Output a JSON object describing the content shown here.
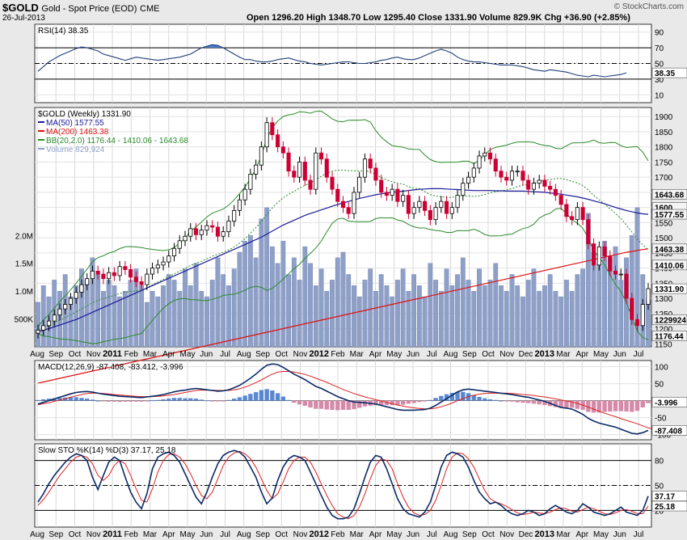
{
  "header": {
    "symbol": "$GOLD",
    "description": "Gold - Spot Price (EOD)",
    "exchange": "CME",
    "date": "26-Jul-2013",
    "ohlc_text": "Open 1296.20  High 1348.70  Low 1295.40  Close 1331.90  Volume 829.9K  Chg +36.90 (+2.85%)",
    "copyright": "© StockCharts.com"
  },
  "colors": {
    "up": "#000000",
    "down": "#cc0033",
    "ma50": "#1a1a99",
    "ma200": "#dd1111",
    "bb": "#2a8a2a",
    "volume": "#8fa0c8",
    "rsi": "#1f3f7a",
    "macd": "#0b2a66",
    "signal": "#dd2222",
    "hist_up": "#5a88d0",
    "hist_down": "#d48aa8",
    "stoK": "#0b2a66",
    "stoD": "#dd2222"
  },
  "chart_data": [
    {
      "type": "line",
      "panel": "rsi",
      "title": "RSI(14) 38.35",
      "yticks": [
        10,
        30,
        50,
        70,
        90
      ],
      "ylim": [
        0,
        100
      ],
      "current_label": "38.35",
      "guides": [
        30,
        50,
        70
      ],
      "series": [
        {
          "name": "RSI(14)",
          "values": [
            40,
            46,
            52,
            56,
            60,
            63,
            66,
            69,
            71,
            70,
            68,
            66,
            62,
            60,
            58,
            56,
            54,
            56,
            58,
            57,
            56,
            55,
            54,
            55,
            56,
            57,
            58,
            60,
            62,
            66,
            70,
            72,
            74,
            73,
            70,
            66,
            62,
            58,
            55,
            55,
            53,
            52,
            52,
            53,
            55,
            56,
            57,
            55,
            53,
            52,
            50,
            49,
            48,
            49,
            50,
            51,
            52,
            52,
            51,
            50,
            50,
            51,
            52,
            54,
            55,
            57,
            58,
            56,
            55,
            55,
            57,
            60,
            63,
            66,
            68,
            66,
            63,
            58,
            55,
            53,
            52,
            52,
            51,
            50,
            49,
            48,
            48,
            48,
            47,
            46,
            44,
            42,
            41,
            40,
            42,
            41,
            40,
            39,
            37,
            35,
            34,
            33,
            35,
            34,
            33,
            34,
            35,
            36,
            38
          ]
        }
      ]
    },
    {
      "type": "candlestick",
      "panel": "price",
      "title": "$GOLD (Weekly) 1331.90",
      "legend": [
        "MA(50) 1577.55",
        "MA(200) 1463.38",
        "BB(20,2.0) 1176.44 - 1410.06 - 1643.68",
        "Volume 829,924"
      ],
      "yticks": [
        1150,
        1200,
        1250,
        1300,
        1350,
        1400,
        1450,
        1500,
        1550,
        1600,
        1650,
        1700,
        1750,
        1800,
        1850,
        1900
      ],
      "ylim": [
        1140,
        1930
      ],
      "volume_ticks": [
        "500K",
        "1.0M",
        "1.5M",
        "2.0M"
      ],
      "volume_max": 4.3,
      "price_labels": [
        "1643.68",
        "1600",
        "1577.55",
        "1463.38",
        "1410.06",
        "1331.90",
        "1229924",
        "1176.44"
      ],
      "x_tick_labels": [
        "Aug",
        "Sep",
        "Oct",
        "Nov",
        "2011",
        "Feb",
        "Mar",
        "Apr",
        "May",
        "Jun",
        "Jul",
        "Aug",
        "Sep",
        "Oct",
        "Nov",
        "2012",
        "Feb",
        "Mar",
        "Apr",
        "May",
        "Jun",
        "Jul",
        "Aug",
        "Sep",
        "Oct",
        "Nov",
        "Dec",
        "2013",
        "Mar",
        "Apr",
        "May",
        "Jun",
        "Jul"
      ],
      "close": [
        1195,
        1210,
        1225,
        1245,
        1265,
        1280,
        1300,
        1320,
        1345,
        1365,
        1390,
        1380,
        1365,
        1385,
        1375,
        1405,
        1395,
        1370,
        1355,
        1345,
        1380,
        1400,
        1410,
        1420,
        1440,
        1465,
        1490,
        1505,
        1530,
        1510,
        1525,
        1540,
        1535,
        1505,
        1520,
        1555,
        1590,
        1625,
        1660,
        1710,
        1740,
        1800,
        1880,
        1840,
        1800,
        1780,
        1720,
        1700,
        1750,
        1690,
        1660,
        1780,
        1760,
        1700,
        1660,
        1620,
        1600,
        1580,
        1650,
        1700,
        1760,
        1730,
        1690,
        1650,
        1640,
        1660,
        1620,
        1640,
        1580,
        1600,
        1620,
        1590,
        1560,
        1600,
        1620,
        1580,
        1600,
        1640,
        1680,
        1700,
        1730,
        1770,
        1780,
        1760,
        1720,
        1700,
        1690,
        1720,
        1720,
        1690,
        1660,
        1680,
        1690,
        1670,
        1660,
        1640,
        1610,
        1570,
        1560,
        1600,
        1560,
        1480,
        1410,
        1470,
        1440,
        1390,
        1380,
        1380,
        1300,
        1230,
        1210,
        1280,
        1331.9
      ],
      "ma50": [
        1190,
        1195,
        1200,
        1206,
        1212,
        1218,
        1224,
        1230,
        1238,
        1246,
        1254,
        1262,
        1270,
        1278,
        1286,
        1294,
        1302,
        1310,
        1318,
        1326,
        1334,
        1342,
        1350,
        1358,
        1366,
        1374,
        1382,
        1390,
        1398,
        1406,
        1414,
        1422,
        1430,
        1438,
        1446,
        1454,
        1462,
        1470,
        1478,
        1486,
        1494,
        1502,
        1512,
        1522,
        1532,
        1542,
        1550,
        1558,
        1566,
        1574,
        1580,
        1586,
        1592,
        1598,
        1604,
        1610,
        1615,
        1620,
        1625,
        1630,
        1634,
        1638,
        1642,
        1645,
        1648,
        1650,
        1652,
        1654,
        1656,
        1658,
        1660,
        1661,
        1662,
        1662,
        1662,
        1661,
        1660,
        1659,
        1658,
        1657,
        1656,
        1656,
        1656,
        1656,
        1655,
        1655,
        1654,
        1654,
        1654,
        1654,
        1653,
        1652,
        1651,
        1650,
        1648,
        1646,
        1644,
        1641,
        1638,
        1635,
        1631,
        1627,
        1622,
        1617,
        1612,
        1606,
        1600,
        1595,
        1590,
        1586,
        1582,
        1579,
        1577.55
      ],
      "ma200": [
        1020,
        1024,
        1028,
        1032,
        1036,
        1040,
        1044,
        1048,
        1052,
        1056,
        1060,
        1064,
        1068,
        1072,
        1076,
        1080,
        1084,
        1088,
        1092,
        1096,
        1100,
        1104,
        1108,
        1112,
        1116,
        1120,
        1124,
        1128,
        1132,
        1136,
        1140,
        1144,
        1148,
        1152,
        1156,
        1160,
        1164,
        1168,
        1172,
        1176,
        1180,
        1184,
        1188,
        1192,
        1196,
        1200,
        1204,
        1208,
        1212,
        1216,
        1220,
        1224,
        1228,
        1232,
        1236,
        1240,
        1244,
        1248,
        1252,
        1256,
        1260,
        1264,
        1268,
        1272,
        1276,
        1280,
        1284,
        1288,
        1292,
        1296,
        1300,
        1304,
        1308,
        1312,
        1316,
        1320,
        1324,
        1328,
        1332,
        1336,
        1340,
        1344,
        1348,
        1352,
        1356,
        1360,
        1364,
        1368,
        1372,
        1376,
        1380,
        1384,
        1388,
        1392,
        1396,
        1400,
        1404,
        1408,
        1412,
        1416,
        1420,
        1424,
        1428,
        1432,
        1436,
        1440,
        1444,
        1448,
        1452,
        1455,
        1458,
        1461,
        1463.38
      ],
      "volume": [
        0.8,
        1.1,
        0.9,
        1.2,
        1.0,
        1.3,
        0.9,
        1.1,
        1.4,
        1.2,
        1.6,
        1.3,
        1.0,
        1.2,
        1.1,
        0.9,
        1.0,
        1.2,
        1.4,
        1.1,
        0.8,
        1.0,
        0.9,
        1.1,
        1.3,
        1.2,
        1.0,
        1.4,
        1.1,
        1.5,
        1.0,
        0.9,
        1.2,
        1.6,
        1.3,
        1.1,
        1.4,
        1.7,
        1.9,
        2.0,
        1.6,
        2.3,
        2.5,
        1.8,
        1.5,
        1.9,
        1.3,
        1.6,
        1.2,
        1.8,
        1.5,
        1.1,
        1.4,
        1.0,
        1.2,
        1.6,
        1.7,
        1.3,
        1.1,
        0.9,
        1.2,
        1.4,
        1.0,
        1.3,
        1.1,
        0.9,
        1.2,
        1.4,
        1.0,
        1.3,
        1.1,
        0.9,
        1.5,
        1.2,
        1.0,
        1.4,
        1.1,
        1.3,
        1.6,
        1.2,
        1.0,
        1.4,
        1.1,
        1.2,
        1.5,
        1.1,
        1.0,
        1.3,
        1.1,
        0.9,
        1.2,
        1.4,
        1.0,
        1.1,
        1.3,
        1.0,
        0.9,
        1.2,
        1.0,
        1.3,
        1.4,
        2.4,
        1.7,
        1.5,
        1.9,
        1.6,
        1.8,
        1.2,
        1.6,
        2.0,
        2.5,
        1.3,
        0.83
      ]
    },
    {
      "type": "line",
      "panel": "macd",
      "title": "MACD(12,26,9) -87.408, -83.412, -3.996",
      "yticks": [
        -100,
        -50,
        0,
        50,
        100
      ],
      "ylim": [
        -115,
        118
      ],
      "current_labels": [
        "-3.996",
        "-87.408"
      ],
      "series": [
        {
          "name": "MACD(12,26,9)",
          "values": [
            -10,
            -5,
            0,
            5,
            10,
            15,
            20,
            24,
            26,
            27,
            25,
            22,
            19,
            17,
            15,
            13,
            12,
            11,
            10,
            9,
            11,
            13,
            15,
            18,
            22,
            26,
            29,
            31,
            34,
            36,
            34,
            32,
            30,
            28,
            29,
            32,
            38,
            45,
            55,
            66,
            78,
            92,
            104,
            108,
            106,
            98,
            88,
            78,
            70,
            62,
            52,
            42,
            36,
            28,
            20,
            12,
            6,
            0,
            -4,
            -5,
            -6,
            -8,
            -10,
            -14,
            -18,
            -22,
            -26,
            -28,
            -28,
            -28,
            -27,
            -26,
            -22,
            -14,
            -4,
            6,
            16,
            26,
            32,
            34,
            32,
            30,
            28,
            26,
            24,
            22,
            20,
            18,
            15,
            12,
            10,
            6,
            2,
            -2,
            -8,
            -14,
            -20,
            -22,
            -25,
            -32,
            -40,
            -52,
            -60,
            -66,
            -70,
            -74,
            -78,
            -84,
            -90,
            -96,
            -98,
            -94,
            -87.408
          ]
        },
        {
          "name": "Signal",
          "values": [
            -12,
            -9,
            -6,
            -2,
            2,
            6,
            10,
            14,
            18,
            21,
            22,
            22,
            21,
            20,
            18,
            17,
            15,
            14,
            13,
            12,
            12,
            12,
            13,
            14,
            16,
            18,
            21,
            24,
            27,
            30,
            31,
            31,
            31,
            30,
            30,
            30,
            32,
            35,
            40,
            46,
            53,
            61,
            70,
            78,
            84,
            86,
            86,
            84,
            81,
            77,
            72,
            66,
            60,
            54,
            47,
            40,
            33,
            27,
            21,
            16,
            11,
            7,
            3,
            -1,
            -5,
            -9,
            -13,
            -16,
            -19,
            -21,
            -23,
            -24,
            -24,
            -22,
            -18,
            -13,
            -7,
            0,
            6,
            12,
            16,
            19,
            21,
            22,
            22,
            22,
            22,
            21,
            20,
            18,
            17,
            15,
            13,
            11,
            8,
            5,
            2,
            -1,
            -4,
            -8,
            -13,
            -19,
            -25,
            -31,
            -37,
            -42,
            -47,
            -53,
            -58,
            -63,
            -68,
            -74,
            -80,
            -83.412
          ]
        }
      ]
    },
    {
      "type": "line",
      "panel": "sto",
      "title": "Slow STO %K(14) %D(3) 37.17, 25.18",
      "yticks": [
        20,
        50,
        80
      ],
      "ylim": [
        0,
        100
      ],
      "current_labels": [
        "37.17",
        "25.18"
      ],
      "guides": [
        20,
        50,
        80
      ],
      "series": [
        {
          "name": "%K(14)",
          "values": [
            30,
            40,
            52,
            62,
            70,
            78,
            84,
            88,
            86,
            80,
            60,
            45,
            62,
            78,
            84,
            80,
            60,
            42,
            30,
            22,
            40,
            70,
            84,
            88,
            90,
            86,
            78,
            64,
            50,
            36,
            28,
            42,
            60,
            76,
            86,
            90,
            92,
            90,
            84,
            72,
            60,
            42,
            28,
            35,
            56,
            72,
            82,
            86,
            84,
            80,
            66,
            52,
            38,
            24,
            14,
            10,
            10,
            12,
            22,
            40,
            60,
            78,
            86,
            84,
            70,
            52,
            34,
            22,
            16,
            14,
            12,
            18,
            30,
            50,
            72,
            86,
            90,
            88,
            84,
            72,
            56,
            42,
            34,
            28,
            30,
            26,
            20,
            16,
            14,
            16,
            20,
            18,
            14,
            16,
            22,
            26,
            22,
            18,
            16,
            20,
            28,
            24,
            18,
            16,
            14,
            16,
            20,
            24,
            18,
            16,
            14,
            20,
            37.17
          ]
        },
        {
          "name": "%D(3)",
          "values": [
            26,
            33,
            42,
            52,
            62,
            70,
            78,
            84,
            86,
            84,
            76,
            62,
            56,
            62,
            74,
            80,
            76,
            62,
            46,
            32,
            30,
            46,
            66,
            80,
            87,
            88,
            84,
            76,
            64,
            50,
            38,
            34,
            42,
            58,
            74,
            84,
            89,
            91,
            88,
            82,
            72,
            58,
            44,
            34,
            40,
            54,
            70,
            80,
            84,
            84,
            78,
            66,
            52,
            38,
            26,
            16,
            12,
            10,
            14,
            24,
            40,
            58,
            74,
            82,
            80,
            70,
            52,
            36,
            24,
            17,
            14,
            15,
            20,
            32,
            50,
            70,
            84,
            89,
            88,
            82,
            72,
            58,
            44,
            34,
            30,
            28,
            25,
            21,
            17,
            15,
            16,
            18,
            17,
            16,
            18,
            21,
            23,
            22,
            19,
            18,
            21,
            24,
            22,
            19,
            16,
            15,
            17,
            20,
            21,
            19,
            16,
            16,
            25.18
          ]
        }
      ]
    },
    {
      "type": "axis",
      "panel": "bottom-axis",
      "x_tick_labels": [
        "Aug",
        "Sep",
        "Oct",
        "Nov",
        "2011",
        "Feb",
        "Mar",
        "Apr",
        "May",
        "Jun",
        "Jul",
        "Aug",
        "Sep",
        "Oct",
        "Nov",
        "2012",
        "Feb",
        "Mar",
        "Apr",
        "May",
        "Jun",
        "Jul",
        "Aug",
        "Sep",
        "Oct",
        "Nov",
        "Dec",
        "2013",
        "Mar",
        "Apr",
        "May",
        "Jun",
        "Jul"
      ]
    }
  ]
}
